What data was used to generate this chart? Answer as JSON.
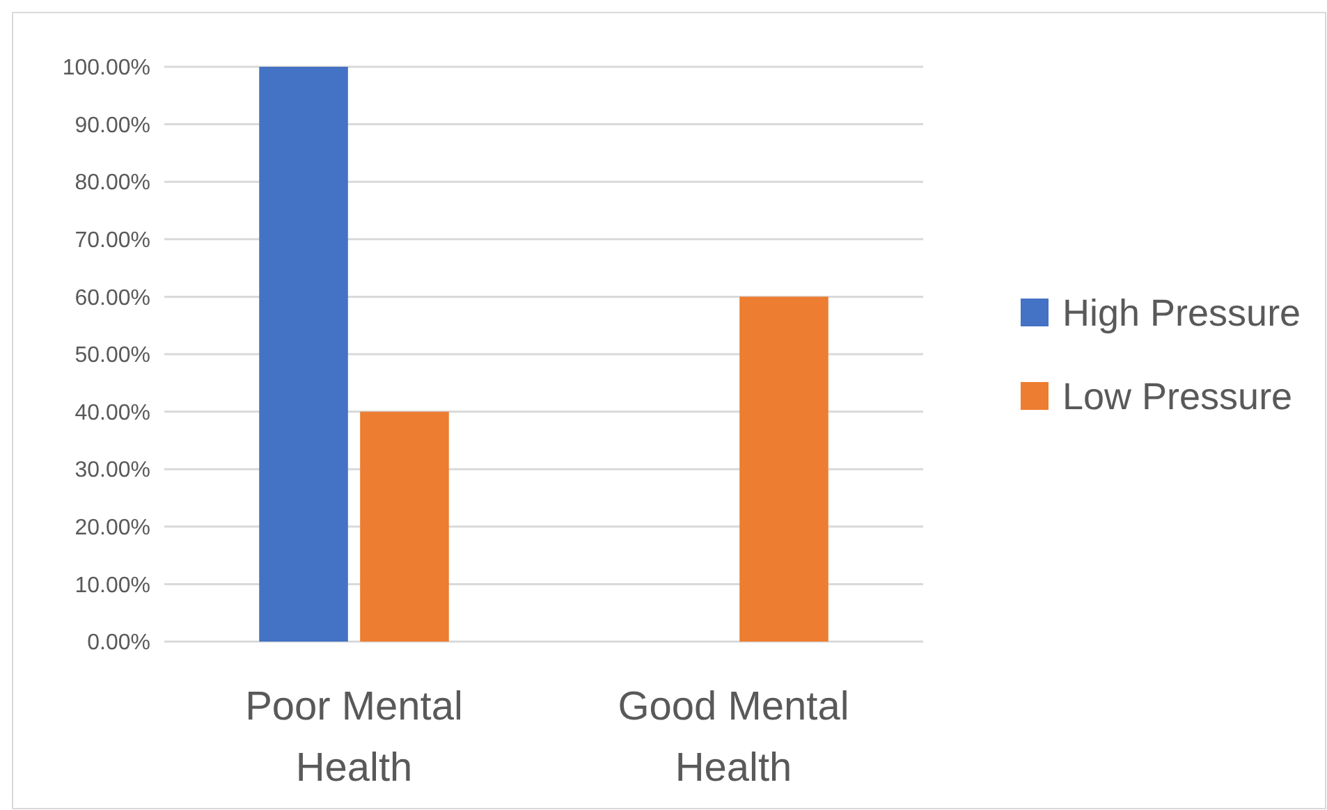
{
  "chart_data": {
    "type": "bar",
    "categories": [
      "Poor Mental Health",
      "Good Mental Health"
    ],
    "series": [
      {
        "name": "High Pressure",
        "color": "#4472c4",
        "values": [
          100,
          0
        ]
      },
      {
        "name": "Low Pressure",
        "color": "#ed7d31",
        "values": [
          40,
          60
        ]
      }
    ],
    "ylim": [
      0,
      100
    ],
    "yticks": [
      {
        "value": 0,
        "label": "0.00%"
      },
      {
        "value": 10,
        "label": "10.00%"
      },
      {
        "value": 20,
        "label": "20.00%"
      },
      {
        "value": 30,
        "label": "30.00%"
      },
      {
        "value": 40,
        "label": "40.00%"
      },
      {
        "value": 50,
        "label": "50.00%"
      },
      {
        "value": 60,
        "label": "60.00%"
      },
      {
        "value": 70,
        "label": "70.00%"
      },
      {
        "value": 80,
        "label": "80.00%"
      },
      {
        "value": 90,
        "label": "90.00%"
      },
      {
        "value": 100,
        "label": "100.00%"
      }
    ],
    "grid": "y",
    "legend": "right"
  }
}
